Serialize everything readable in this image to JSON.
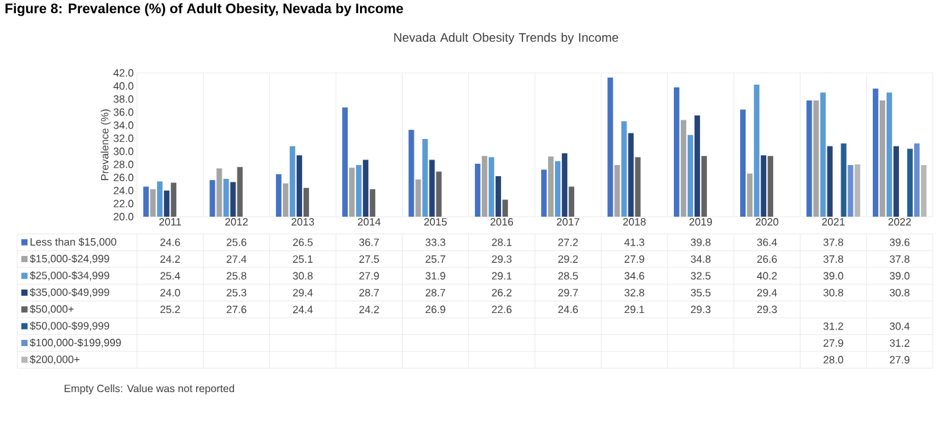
{
  "chart_data": {
    "type": "bar",
    "title": "Nevada Adult Obesity Trends by Income",
    "ylabel": "Prevalence (%)",
    "annotations": [
      "Figure 8: Prevalence (%) of Adult Obesity, Nevada by Income",
      "Empty Cells: Value was not reported"
    ],
    "categories": [
      "2011",
      "2012",
      "2013",
      "2014",
      "2015",
      "2016",
      "2017",
      "2018",
      "2019",
      "2020",
      "2021",
      "2022"
    ],
    "series": [
      {
        "name": "Less than $15,000",
        "color": "#4472c4",
        "values": [
          24.6,
          25.6,
          26.5,
          36.7,
          33.3,
          28.1,
          27.2,
          41.3,
          39.8,
          36.4,
          37.8,
          39.6
        ],
        "value_labels": [
          "24.6",
          "25.6",
          "26.5",
          "36.7",
          "33.3",
          "28.1",
          "27.2",
          "41.3",
          "39.8",
          "36.4",
          "37.8",
          "39.6"
        ]
      },
      {
        "name": "$15,000-$24,999",
        "color": "#a5a5a5",
        "values": [
          24.2,
          27.4,
          25.1,
          27.5,
          25.7,
          29.3,
          29.2,
          27.9,
          34.8,
          26.6,
          37.8,
          37.8
        ],
        "value_labels": [
          "24.2",
          "27.4",
          "25.1",
          "27.5",
          "25.7",
          "29.3",
          "29.2",
          "27.9",
          "34.8",
          "26.6",
          "37.8",
          "37.8"
        ]
      },
      {
        "name": "$25,000-$34,999",
        "color": "#5b9bd5",
        "values": [
          25.4,
          25.8,
          30.8,
          27.9,
          31.9,
          29.1,
          28.5,
          34.6,
          32.5,
          40.2,
          39.0,
          39.0
        ],
        "value_labels": [
          "25.4",
          "25.8",
          "30.8",
          "27.9",
          "31.9",
          "29.1",
          "28.5",
          "34.6",
          "32.5",
          "40.2",
          "39.0",
          "39.0"
        ]
      },
      {
        "name": "$35,000-$49,999",
        "color": "#264478",
        "values": [
          24.0,
          25.3,
          29.4,
          28.7,
          28.7,
          26.2,
          29.7,
          32.8,
          35.5,
          29.4,
          30.8,
          30.8
        ],
        "value_labels": [
          "24.0",
          "25.3",
          "29.4",
          "28.7",
          "28.7",
          "26.2",
          "29.7",
          "32.8",
          "35.5",
          "29.4",
          "30.8",
          "30.8"
        ]
      },
      {
        "name": "$50,000+",
        "color": "#636363",
        "values": [
          25.2,
          27.6,
          24.4,
          24.2,
          26.9,
          22.6,
          24.6,
          29.1,
          29.3,
          29.3,
          null,
          null
        ],
        "value_labels": [
          "25.2",
          "27.6",
          "24.4",
          "24.2",
          "26.9",
          "22.6",
          "24.6",
          "29.1",
          "29.3",
          "29.3",
          null,
          null
        ]
      },
      {
        "name": "$50,000-$99,999",
        "color": "#255e91",
        "values": [
          null,
          null,
          null,
          null,
          null,
          null,
          null,
          null,
          null,
          null,
          31.2,
          30.4
        ],
        "value_labels": [
          null,
          null,
          null,
          null,
          null,
          null,
          null,
          null,
          null,
          null,
          "31.2",
          "30.4"
        ]
      },
      {
        "name": "$100,000-$199,999",
        "color": "#698ed0",
        "values": [
          null,
          null,
          null,
          null,
          null,
          null,
          null,
          null,
          null,
          null,
          27.9,
          31.2
        ],
        "value_labels": [
          null,
          null,
          null,
          null,
          null,
          null,
          null,
          null,
          null,
          null,
          "27.9",
          "31.2"
        ]
      },
      {
        "name": "$200,000+",
        "color": "#b7b7b7",
        "values": [
          null,
          null,
          null,
          null,
          null,
          null,
          null,
          null,
          null,
          null,
          28.0,
          27.9
        ],
        "value_labels": [
          null,
          null,
          null,
          null,
          null,
          null,
          null,
          null,
          null,
          null,
          "28.0",
          "27.9"
        ]
      }
    ],
    "ylim": [
      20,
      42
    ],
    "yticks": [
      {
        "value": 20,
        "label": "20.0"
      },
      {
        "value": 22,
        "label": "22.0"
      },
      {
        "value": 24,
        "label": "24.0"
      },
      {
        "value": 26,
        "label": "26.0"
      },
      {
        "value": 28,
        "label": "28.0"
      },
      {
        "value": 30,
        "label": "30.0"
      },
      {
        "value": 32,
        "label": "32.0"
      },
      {
        "value": 34,
        "label": "34.0"
      },
      {
        "value": 36,
        "label": "36.0"
      },
      {
        "value": 38,
        "label": "38.0"
      },
      {
        "value": 40,
        "label": "40.0"
      },
      {
        "value": 42,
        "label": "42.0"
      }
    ],
    "grid": "x",
    "legend": "bottom"
  }
}
